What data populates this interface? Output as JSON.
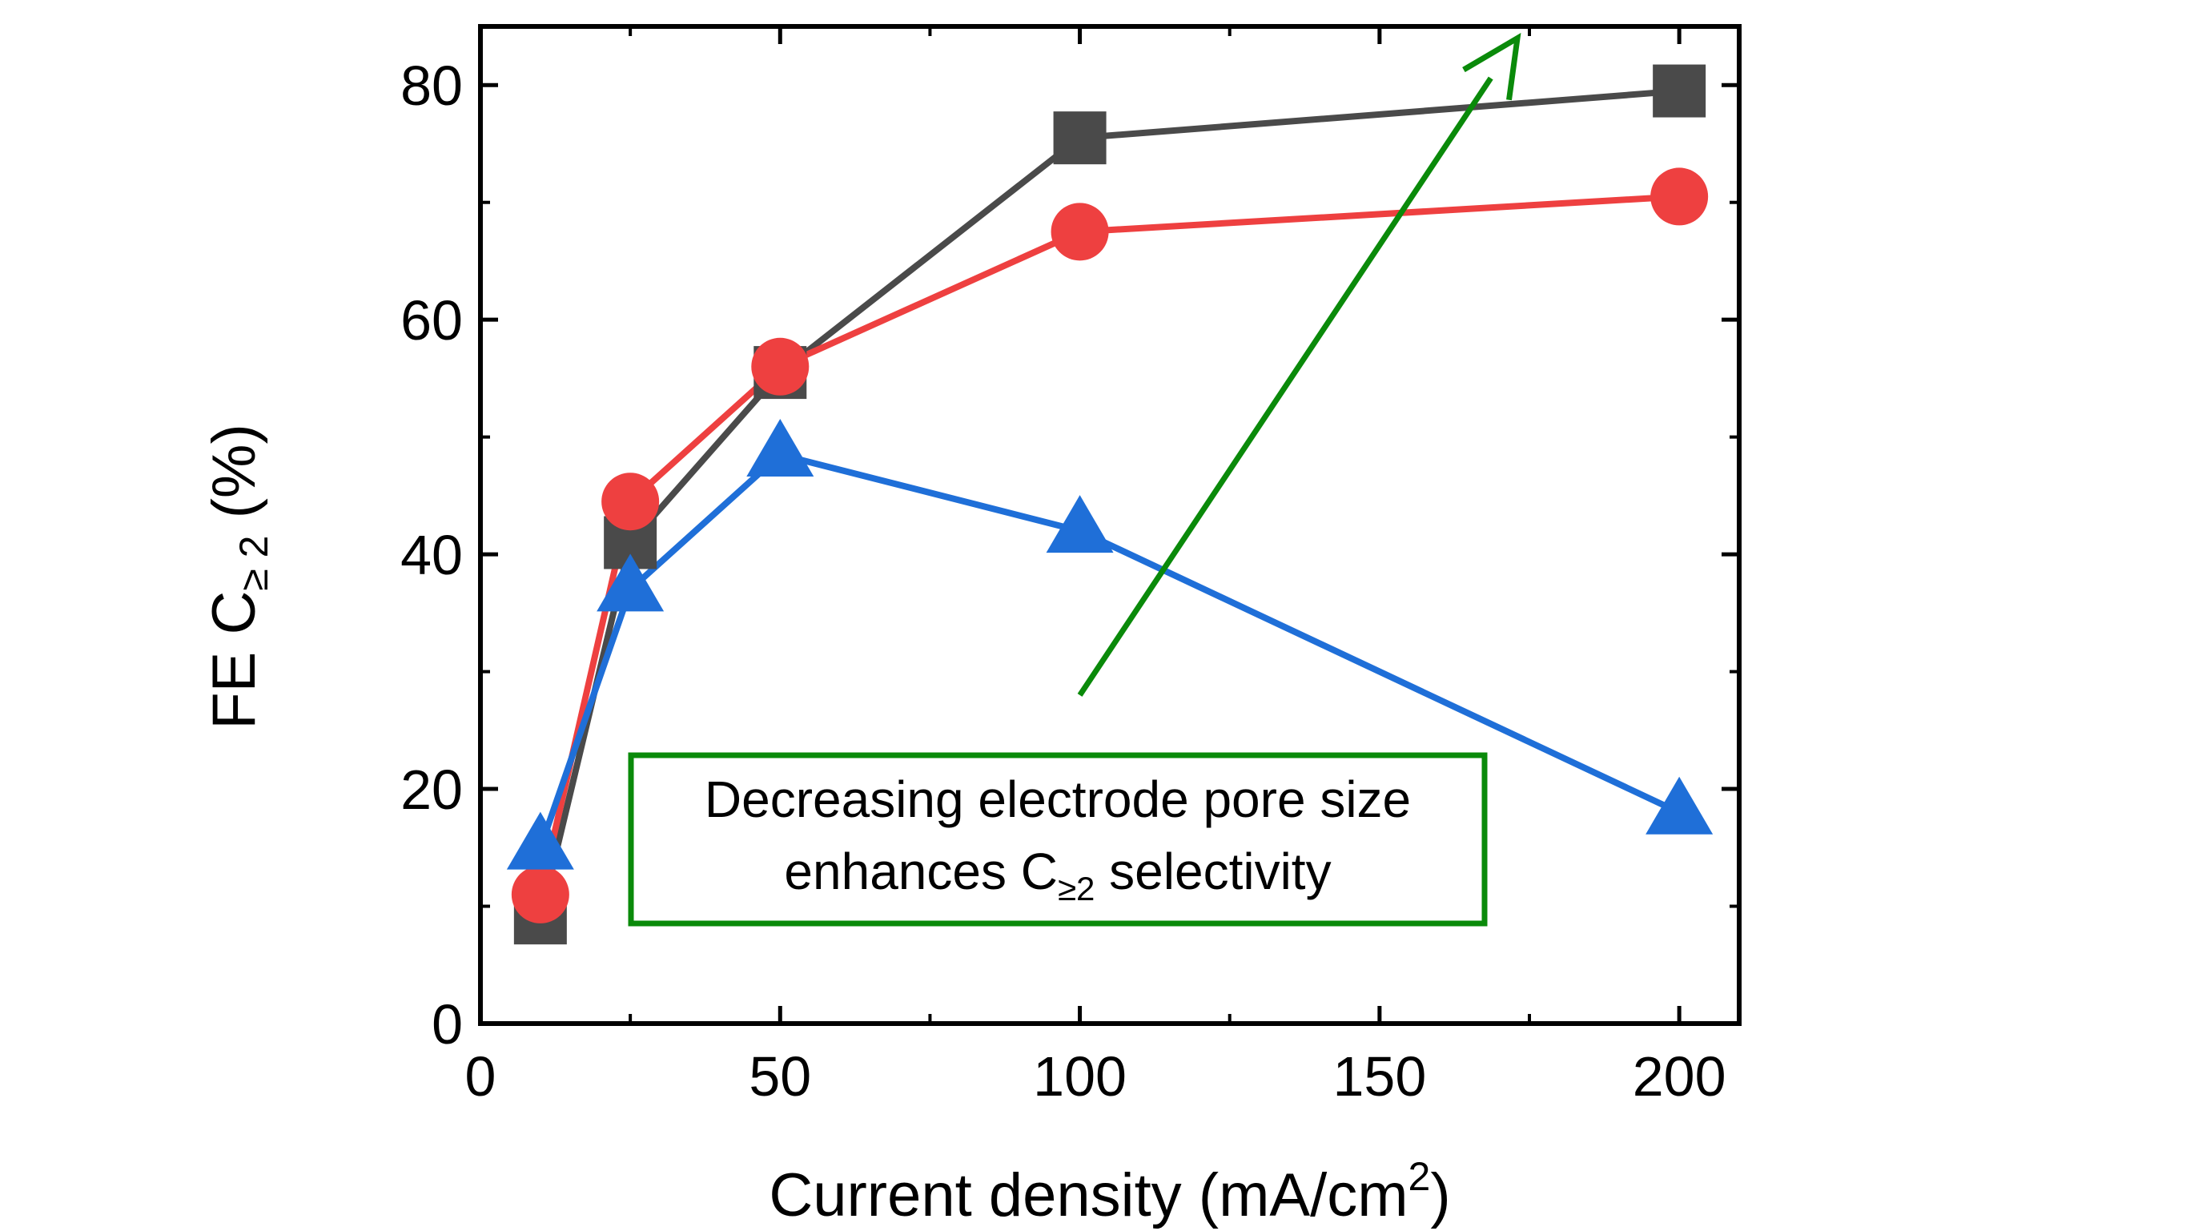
{
  "chart_data": {
    "type": "line",
    "xlabel": "Current density (mA/cm",
    "xlabel_sup": "2",
    "xlabel_end": ")",
    "ylabel": "FE C",
    "ylabel_sub": "≥ 2",
    "ylabel_end": " (%)",
    "xlim": [
      0,
      210
    ],
    "ylim": [
      0,
      85
    ],
    "xticks": [
      0,
      50,
      100,
      150,
      200
    ],
    "yticks": [
      0,
      20,
      40,
      60,
      80
    ],
    "xtick_labels": [
      "0",
      "50",
      "100",
      "150",
      "200"
    ],
    "ytick_labels": [
      "0",
      "20",
      "40",
      "60",
      "80"
    ],
    "grid": false,
    "series": [
      {
        "color": "#4a4a4a",
        "marker": "square",
        "x": [
          10,
          25,
          50,
          100,
          200
        ],
        "y": [
          9,
          41,
          55.5,
          75.5,
          79.5
        ]
      },
      {
        "color": "#ee4040",
        "marker": "circle",
        "x": [
          10,
          25,
          50,
          100,
          200
        ],
        "y": [
          11,
          44.5,
          56,
          67.5,
          70.5
        ]
      },
      {
        "color": "#1f6fd8",
        "marker": "triangle",
        "x": [
          10,
          25,
          50,
          100,
          200
        ],
        "y": [
          15,
          37,
          48.5,
          42,
          18
        ]
      }
    ],
    "annotation": {
      "line1": "Decreasing electrode pore size",
      "line2_start": "enhances C",
      "line2_sub": "≥2",
      "line2_end": " selectivity",
      "box_color": "#0a8a0a"
    },
    "arrow": {
      "color": "#0a8a0a",
      "from": [
        100,
        28
      ],
      "to": [
        173,
        84
      ]
    }
  }
}
